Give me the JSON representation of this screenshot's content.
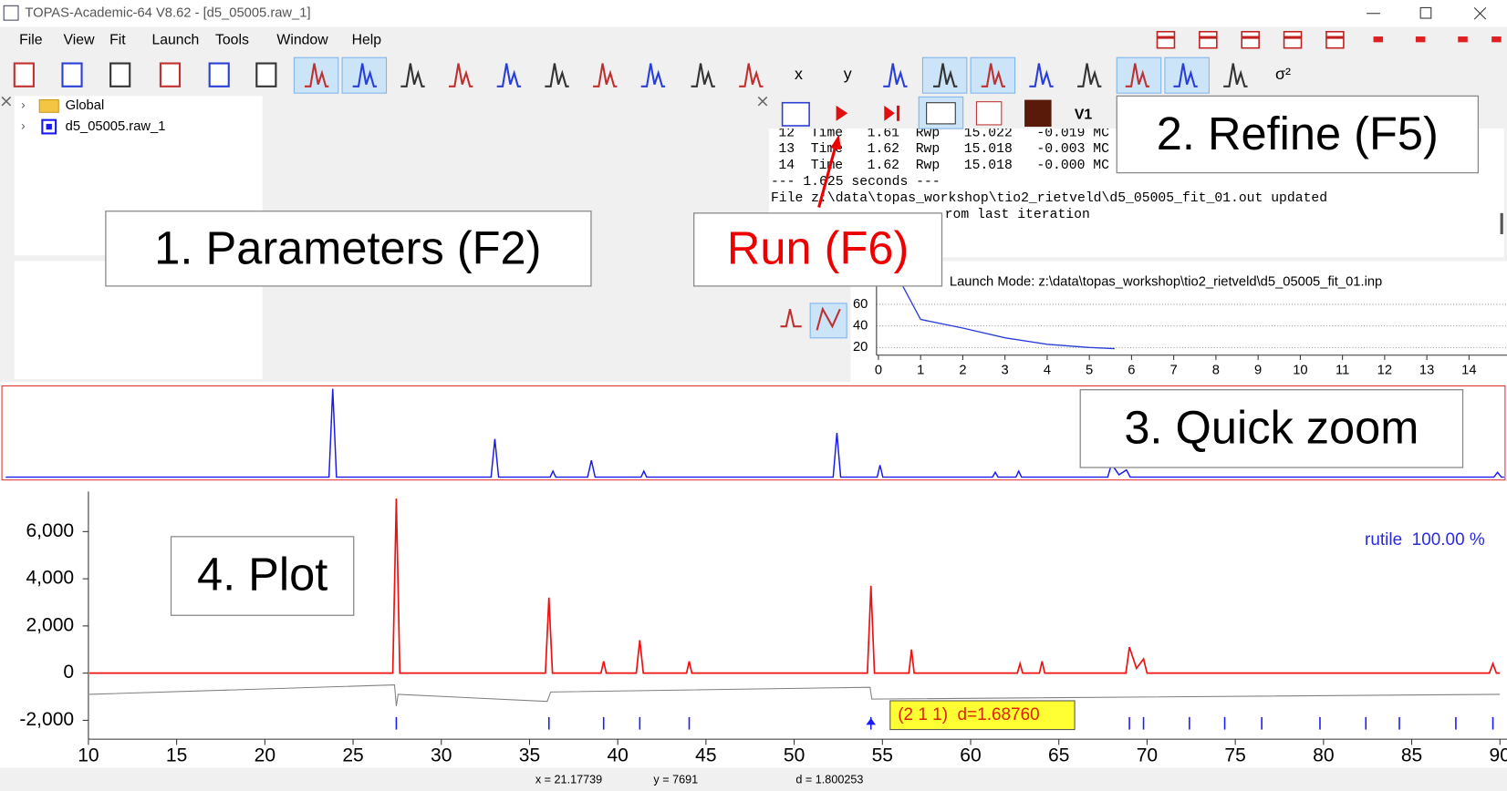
{
  "window": {
    "title": "TOPAS-Academic-64 V8.62 - [d5_05005.raw_1]"
  },
  "menu": [
    "File",
    "View",
    "Fit",
    "Launch",
    "Tools",
    "Window",
    "Help"
  ],
  "toolbar": {
    "buttons": [
      "x",
      "y",
      "σ²"
    ],
    "refine_toolbar": [
      "V1"
    ]
  },
  "tree": [
    "Global",
    "d5_05005.raw_1"
  ],
  "refine_log": {
    "lines": [
      "12  Time   1.61  Rwp   15.022   -0.019 MC",
      "13  Time   1.62  Rwp   15.018   -0.003 MC",
      "14  Time   1.62  Rwp   15.018   -0.000 MC",
      "--- 1.625 seconds ---",
      "File z:\\data\\topas_workshop\\tio2_rietveld\\d5_05005_fit_01.out updated"
    ],
    "tail": "rom last iteration"
  },
  "callouts": [
    "1. Parameters (F2)",
    "2. Refine (F5)",
    "Run (F6)",
    "3. Quick zoom",
    "4. Plot"
  ],
  "status_bar": [
    "x = 21.17739",
    "y = 7691",
    "d = 1.800253"
  ],
  "chart_data": [
    {
      "type": "line",
      "title": "Launch Mode: z:\\data\\topas_workshop\\tio2_rietveld\\d5_05005_fit_01.inp",
      "x": [
        0.48,
        1,
        2,
        3,
        4,
        5,
        5.6
      ],
      "values": [
        84,
        46,
        38,
        29,
        23,
        20,
        19
      ],
      "color": "#2a3fd6",
      "xlim": [
        -0.66,
        14.9
      ],
      "ylim": [
        12.9,
        84
      ],
      "xticks": [
        0,
        1,
        2,
        3,
        4,
        5,
        6,
        7,
        8,
        9,
        10,
        11,
        12,
        13,
        14
      ],
      "yticks": [
        20,
        40,
        60
      ],
      "grid": true
    },
    {
      "type": "line",
      "color": "#1a1aee",
      "x": [
        10,
        27.25,
        27.45,
        27.65,
        35.9,
        36.1,
        36.3,
        39.05,
        39.2,
        39.35,
        41.05,
        41.25,
        41.45,
        43.9,
        44.05,
        44.2,
        54.15,
        54.35,
        54.55,
        56.5,
        56.65,
        56.8,
        62.65,
        62.8,
        62.95,
        63.9,
        64.05,
        64.2,
        68.8,
        69.0,
        69.4,
        69.8,
        70.0,
        89.4,
        89.6,
        89.8,
        90
      ],
      "values": [
        0,
        0,
        7400,
        0,
        0,
        3200,
        0,
        0,
        500,
        0,
        0,
        1400,
        0,
        0,
        500,
        0,
        0,
        3700,
        0,
        0,
        1000,
        0,
        0,
        400,
        0,
        0,
        500,
        0,
        0,
        1100,
        200,
        600,
        0,
        0,
        400,
        0,
        0
      ],
      "xlim": [
        9.8,
        90
      ],
      "ylim": [
        -240,
        7640
      ]
    },
    {
      "type": "line",
      "xlim": [
        10,
        90.4
      ],
      "ylim": [
        -2800,
        7700
      ],
      "xticks": [
        10,
        15,
        20,
        25,
        30,
        35,
        40,
        45,
        50,
        55,
        60,
        65,
        70,
        75,
        80,
        85,
        90
      ],
      "yticks": [
        {
          "value": 6000,
          "label": "6,000"
        },
        {
          "value": 4000,
          "label": "4,000"
        },
        {
          "value": 2000,
          "label": "2,000"
        },
        0,
        {
          "value": -2000,
          "label": "-2,000"
        }
      ],
      "series": [
        {
          "color": "#ee1111",
          "x": [
            10,
            27.25,
            27.45,
            27.65,
            35.9,
            36.1,
            36.3,
            39.05,
            39.2,
            39.35,
            41.05,
            41.25,
            41.45,
            43.9,
            44.05,
            44.2,
            54.15,
            54.35,
            54.55,
            56.5,
            56.65,
            56.8,
            62.65,
            62.8,
            62.95,
            63.9,
            64.05,
            64.2,
            68.8,
            69.0,
            69.4,
            69.8,
            70.0,
            89.4,
            89.6,
            89.8,
            90
          ],
          "values": [
            0,
            0,
            7400,
            0,
            0,
            3200,
            0,
            0,
            500,
            0,
            0,
            1400,
            0,
            0,
            500,
            0,
            0,
            3700,
            0,
            0,
            1000,
            0,
            0,
            400,
            0,
            0,
            500,
            0,
            0,
            1100,
            200,
            600,
            0,
            0,
            400,
            0,
            0
          ]
        },
        {
          "color": "#808080",
          "x": [
            10,
            27.35,
            27.45,
            27.55,
            36.0,
            36.2,
            54.3,
            54.4,
            90
          ],
          "values": [
            -900,
            -500,
            -1400,
            -900,
            -1200,
            -800,
            -600,
            -1100,
            -900
          ]
        }
      ],
      "reflections": {
        "color": "#1a1aff",
        "x": [
          27.45,
          36.1,
          39.2,
          41.25,
          44.05,
          54.35,
          56.65,
          62.8,
          64.05,
          69.0,
          69.8,
          72.4,
          74.4,
          76.5,
          79.8,
          82.4,
          84.3,
          87.5,
          89.6
        ]
      },
      "annotation": {
        "label": "(2 1 1)  d=1.68760",
        "x": 54.35
      },
      "phase_label": "rutile  100.00 %"
    }
  ]
}
